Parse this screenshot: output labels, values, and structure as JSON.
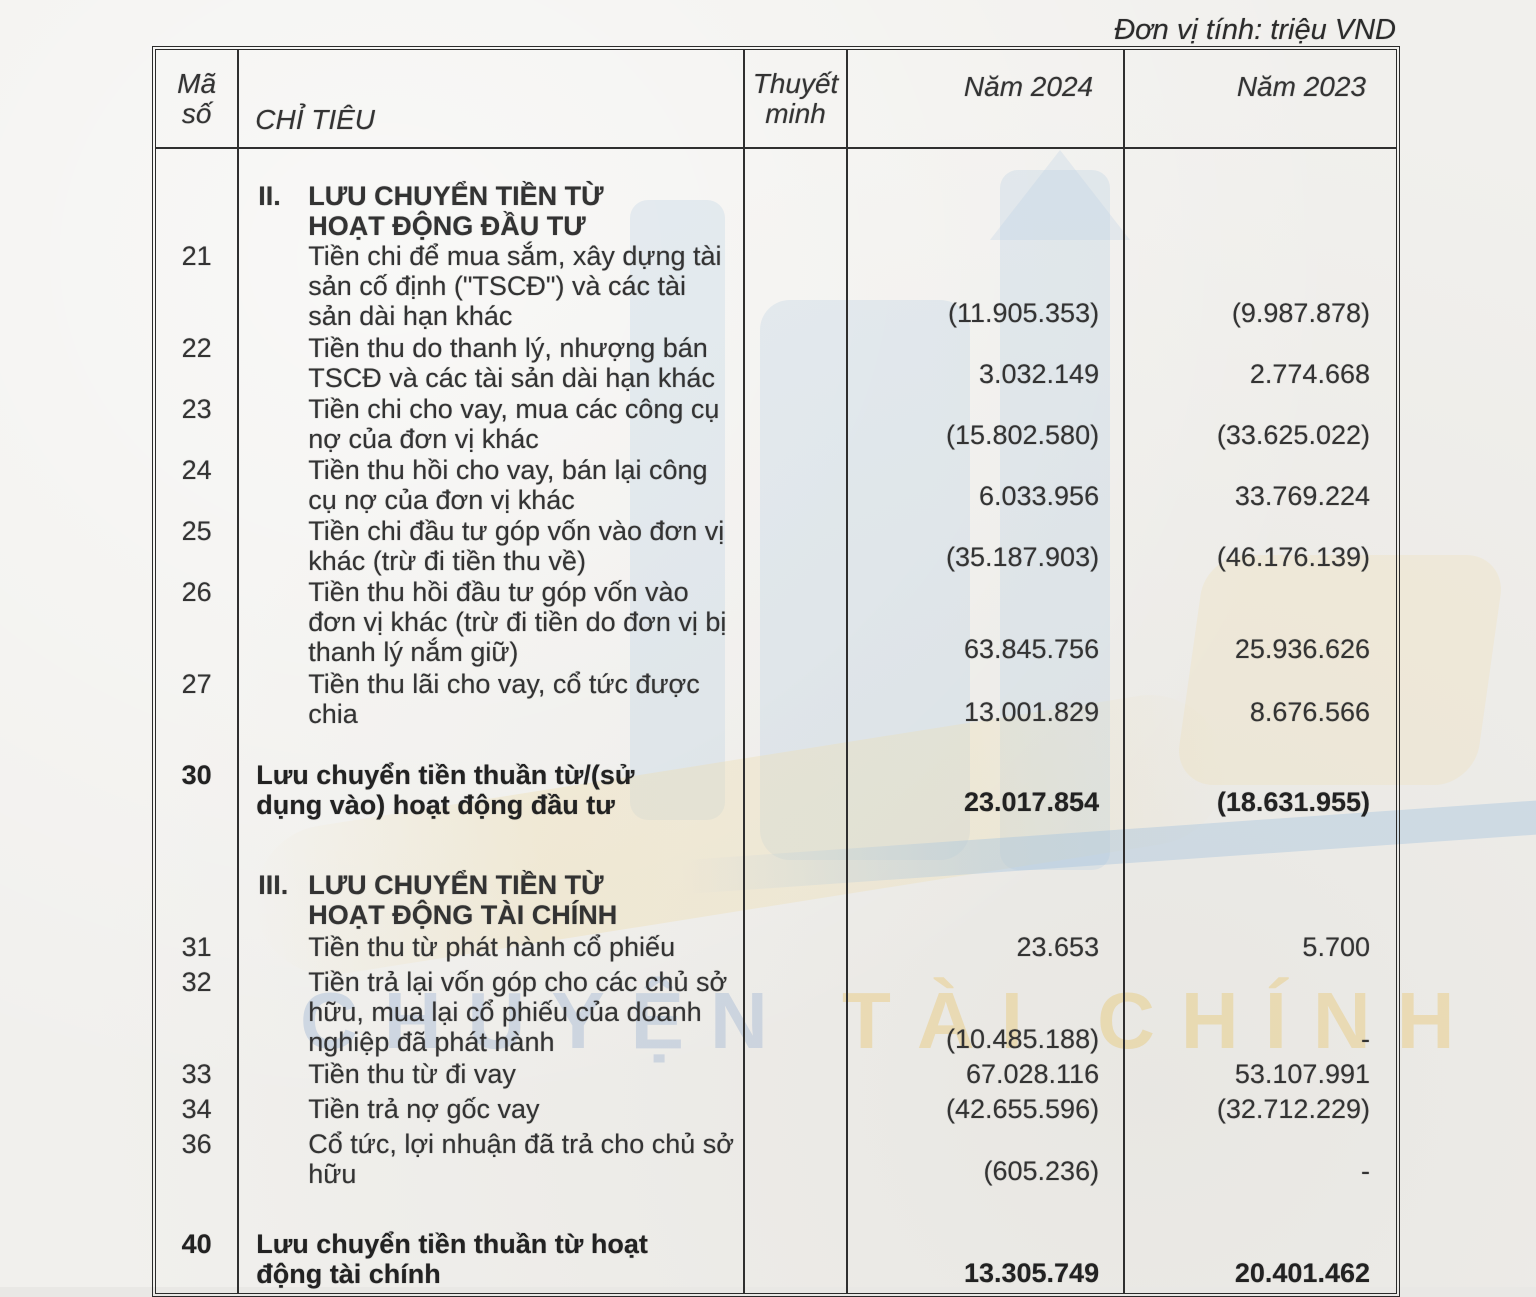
{
  "page": {
    "unit_label": "Đơn vị tính: triệu VND"
  },
  "watermark": {
    "word_blue": "CHUYỆN",
    "word_yellow": "TÀI CHÍNH",
    "blue_tint": "#809eca",
    "yellow_tint": "#e9be54"
  },
  "table": {
    "headers": {
      "code_l1": "Mã",
      "code_l2": "số",
      "title": "CHỈ TIÊU",
      "notes_l1": "Thuyết",
      "notes_l2": "minh",
      "year_2024": "Năm 2024",
      "year_2023": "Năm 2023"
    },
    "rows": [
      {
        "kind": "section",
        "numeral": "II.",
        "label_l1": "LƯU CHUYỂN TIỀN TỪ",
        "label_l2": "HOẠT ĐỘNG ĐẦU TƯ",
        "code": "",
        "v2024": "",
        "v2023": ""
      },
      {
        "kind": "item",
        "code": "21",
        "label": "Tiền chi để mua sắm, xây dựng tài sản cố định (\"TSCĐ\") và các tài sản dài hạn khác",
        "v2024": "(11.905.353)",
        "v2023": "(9.987.878)"
      },
      {
        "kind": "item",
        "code": "22",
        "label": "Tiền thu do thanh lý, nhượng bán TSCĐ và các tài sản dài hạn khác",
        "v2024": "3.032.149",
        "v2023": "2.774.668"
      },
      {
        "kind": "item",
        "code": "23",
        "label": "Tiền chi cho vay, mua các công cụ nợ của đơn vị khác",
        "v2024": "(15.802.580)",
        "v2023": "(33.625.022)"
      },
      {
        "kind": "item",
        "code": "24",
        "label": "Tiền thu hồi cho vay, bán lại công cụ nợ của đơn vị khác",
        "v2024": "6.033.956",
        "v2023": "33.769.224"
      },
      {
        "kind": "item",
        "code": "25",
        "label": "Tiền chi đầu tư góp vốn vào đơn vị khác (trừ đi tiền thu về)",
        "v2024": "(35.187.903)",
        "v2023": "(46.176.139)"
      },
      {
        "kind": "item",
        "code": "26",
        "label": "Tiền thu hồi đầu tư góp vốn vào đơn vị khác (trừ đi tiền do đơn vị bị thanh lý nắm giữ)",
        "v2024": "63.845.756",
        "v2023": "25.936.626"
      },
      {
        "kind": "item",
        "code": "27",
        "label": "Tiền thu lãi cho vay, cổ tức được chia",
        "v2024": "13.001.829",
        "v2023": "8.676.566"
      },
      {
        "kind": "total",
        "code": "30",
        "label": "Lưu chuyển tiền thuần từ/(sử dụng vào) hoạt động đầu tư",
        "v2024": "23.017.854",
        "v2023": "(18.631.955)"
      },
      {
        "kind": "section",
        "numeral": "III.",
        "label_l1": "LƯU CHUYỂN TIỀN TỪ",
        "label_l2": "HOẠT ĐỘNG TÀI CHÍNH",
        "code": "",
        "v2024": "",
        "v2023": ""
      },
      {
        "kind": "item",
        "code": "31",
        "label": "Tiền thu từ phát hành cổ phiếu",
        "v2024": "23.653",
        "v2023": "5.700"
      },
      {
        "kind": "item",
        "code": "32",
        "label": "Tiền trả lại vốn góp cho các chủ sở hữu, mua lại cổ phiếu của doanh nghiệp đã phát hành",
        "v2024": "(10.485.188)",
        "v2023": "-"
      },
      {
        "kind": "item",
        "code": "33",
        "label": "Tiền thu từ đi vay",
        "v2024": "67.028.116",
        "v2023": "53.107.991"
      },
      {
        "kind": "item",
        "code": "34",
        "label": "Tiền trả nợ gốc vay",
        "v2024": "(42.655.596)",
        "v2023": "(32.712.229)"
      },
      {
        "kind": "item",
        "code": "36",
        "label": "Cổ tức, lợi nhuận đã trả cho chủ sở hữu",
        "v2024": "(605.236)",
        "v2023": "-"
      },
      {
        "kind": "total",
        "code": "40",
        "label": "Lưu chuyển tiền thuần từ hoạt động tài chính",
        "v2024": "13.305.749",
        "v2023": "20.401.462"
      }
    ]
  }
}
